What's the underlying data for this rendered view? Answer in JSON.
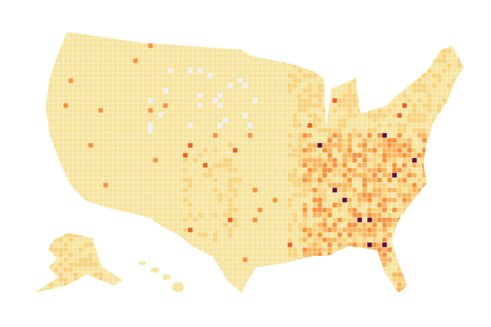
{
  "map": {
    "palette": [
      "#f6e39a",
      "#f8d27a",
      "#f9b45a",
      "#f6923a",
      "#e5631f",
      "#b5283a",
      "#5c1040"
    ],
    "missing_color": "#efefef",
    "border_color": "#ffffff"
  }
}
